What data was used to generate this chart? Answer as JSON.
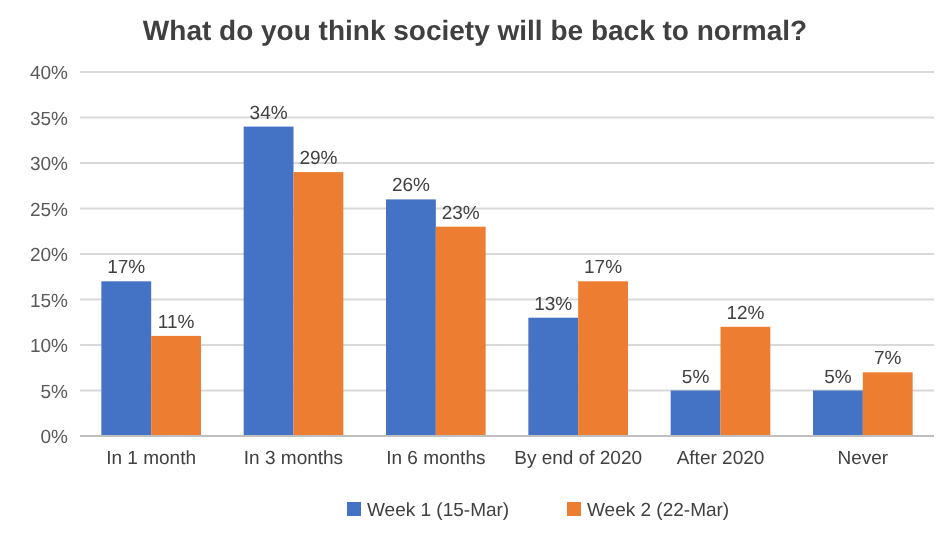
{
  "chart_data": {
    "type": "bar",
    "title": "What do you think society will be back to normal?",
    "categories": [
      "In 1 month",
      "In 3 months",
      "In 6 months",
      "By end of 2020",
      "After 2020",
      "Never"
    ],
    "series": [
      {
        "name": "Week 1 (15-Mar)",
        "color": "#4472c4",
        "values": [
          17,
          34,
          26,
          13,
          5,
          5
        ],
        "value_labels": [
          "17%",
          "34%",
          "26%",
          "13%",
          "5%",
          "5%"
        ]
      },
      {
        "name": "Week 2 (22-Mar)",
        "color": "#ed7d31",
        "values": [
          11,
          29,
          23,
          17,
          12,
          7
        ],
        "value_labels": [
          "11%",
          "29%",
          "23%",
          "17%",
          "12%",
          "7%"
        ]
      }
    ],
    "ylim": [
      0,
      40
    ],
    "yticks": [
      {
        "value": 0,
        "label": "0%"
      },
      {
        "value": 5,
        "label": "5%"
      },
      {
        "value": 10,
        "label": "10%"
      },
      {
        "value": 15,
        "label": "15%"
      },
      {
        "value": 20,
        "label": "20%"
      },
      {
        "value": 25,
        "label": "25%"
      },
      {
        "value": 30,
        "label": "30%"
      },
      {
        "value": 35,
        "label": "35%"
      },
      {
        "value": 40,
        "label": "40%"
      }
    ],
    "grid": "y",
    "legend": "bottom"
  }
}
